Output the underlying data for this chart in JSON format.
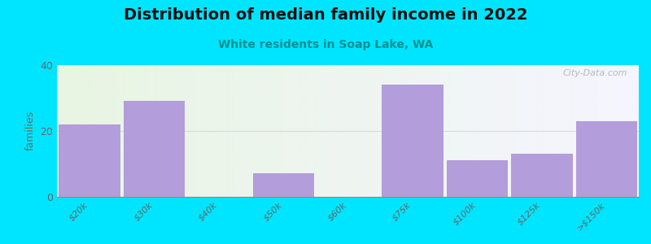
{
  "title": "Distribution of median family income in 2022",
  "subtitle": "White residents in Soap Lake, WA",
  "ylabel": "families",
  "categories": [
    "$20k",
    "$30k",
    "$40k",
    "$50k",
    "$60k",
    "$75k",
    "$100k",
    "$125k",
    ">$150k"
  ],
  "values": [
    22,
    29,
    0,
    7,
    0,
    34,
    11,
    13,
    23
  ],
  "bar_color": "#b39ddb",
  "background_color": "#00e5ff",
  "grad_color_left": "#e8f5e2",
  "grad_color_right": "#f0f0f8",
  "title_fontsize": 14,
  "subtitle_fontsize": 10,
  "subtitle_color": "#009090",
  "ylabel_color": "#666666",
  "tick_color": "#666666",
  "ylim": [
    0,
    40
  ],
  "yticks": [
    0,
    20,
    40
  ],
  "watermark": "City-Data.com",
  "bar_width": 0.95
}
